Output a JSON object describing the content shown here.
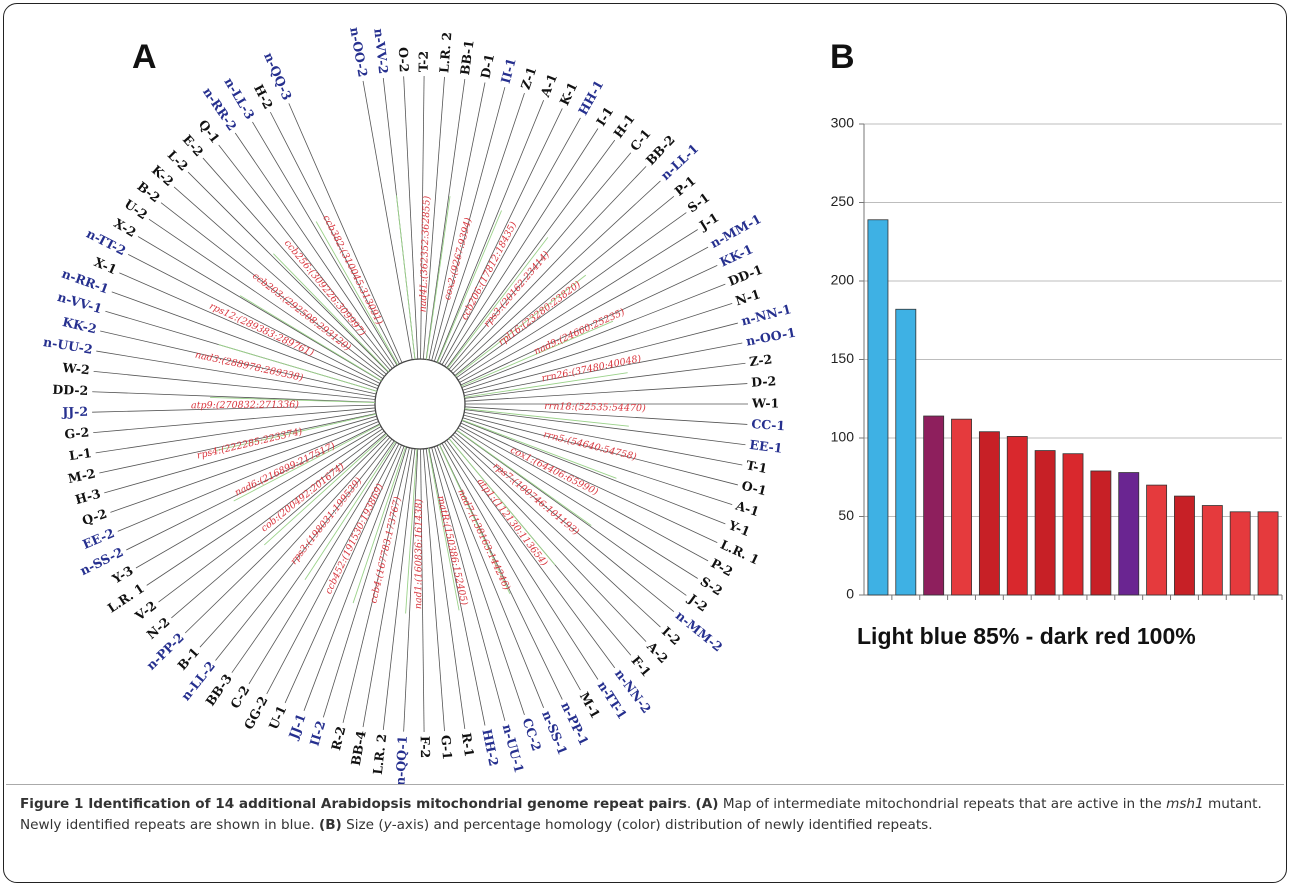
{
  "panel_a": {
    "letter": "A",
    "labels": [
      {
        "t": "n-OO-2",
        "blue": true
      },
      {
        "t": "n-VV-2",
        "blue": true
      },
      {
        "t": "O-2",
        "blue": false
      },
      {
        "t": "T-2",
        "blue": false
      },
      {
        "t": "L.R. 2",
        "blue": false
      },
      {
        "t": "BB-1",
        "blue": false
      },
      {
        "t": "D-1",
        "blue": false
      },
      {
        "t": "II-1",
        "blue": true
      },
      {
        "t": "Z-1",
        "blue": false
      },
      {
        "t": "A-1",
        "blue": false
      },
      {
        "t": "K-1",
        "blue": false
      },
      {
        "t": "HH-1",
        "blue": true
      },
      {
        "t": "I-1",
        "blue": false
      },
      {
        "t": "H-1",
        "blue": false
      },
      {
        "t": "C-1",
        "blue": false
      },
      {
        "t": "BB-2",
        "blue": false
      },
      {
        "t": "n-LL-1",
        "blue": true
      },
      {
        "t": "P-1",
        "blue": false
      },
      {
        "t": "S-1",
        "blue": false
      },
      {
        "t": "J-1",
        "blue": false
      },
      {
        "t": "n-MM-1",
        "blue": true
      },
      {
        "t": "KK-1",
        "blue": true
      },
      {
        "t": "DD-1",
        "blue": false
      },
      {
        "t": "N-1",
        "blue": false
      },
      {
        "t": "n-NN-1",
        "blue": true
      },
      {
        "t": "n-OO-1",
        "blue": true
      },
      {
        "t": "Z-2",
        "blue": false
      },
      {
        "t": "D-2",
        "blue": false
      },
      {
        "t": "W-1",
        "blue": false
      },
      {
        "t": "CC-1",
        "blue": true
      },
      {
        "t": "EE-1",
        "blue": true
      },
      {
        "t": "T-1",
        "blue": false
      },
      {
        "t": "O-1",
        "blue": false
      },
      {
        "t": "A-1",
        "blue": false
      },
      {
        "t": "Y-1",
        "blue": false
      },
      {
        "t": "L.R. 1",
        "blue": false
      },
      {
        "t": "P-2",
        "blue": false
      },
      {
        "t": "S-2",
        "blue": false
      },
      {
        "t": "J-2",
        "blue": false
      },
      {
        "t": "n-MM-2",
        "blue": true
      },
      {
        "t": "I-2",
        "blue": false
      },
      {
        "t": "A-2",
        "blue": false
      },
      {
        "t": "F-1",
        "blue": false
      },
      {
        "t": "n-NN-2",
        "blue": true
      },
      {
        "t": "n-TT-1",
        "blue": true
      },
      {
        "t": "M-1",
        "blue": false
      },
      {
        "t": "n-PP-1",
        "blue": true
      },
      {
        "t": "n-SS-1",
        "blue": true
      },
      {
        "t": "CC-2",
        "blue": true
      },
      {
        "t": "n-UU-1",
        "blue": true
      },
      {
        "t": "HH-2",
        "blue": true
      },
      {
        "t": "R-1",
        "blue": false
      },
      {
        "t": "G-1",
        "blue": false
      },
      {
        "t": "F-2",
        "blue": false
      },
      {
        "t": "n-QQ-1",
        "blue": true
      },
      {
        "t": "L.R. 2",
        "blue": false
      },
      {
        "t": "BB-4",
        "blue": false
      },
      {
        "t": "R-2",
        "blue": false
      },
      {
        "t": "II-2",
        "blue": true
      },
      {
        "t": "JJ-1",
        "blue": true
      },
      {
        "t": "U-1",
        "blue": false
      },
      {
        "t": "GG-2",
        "blue": false
      },
      {
        "t": "C-2",
        "blue": false
      },
      {
        "t": "BB-3",
        "blue": false
      },
      {
        "t": "n-LL-2",
        "blue": true
      },
      {
        "t": "B-1",
        "blue": false
      },
      {
        "t": "n-PP-2",
        "blue": true
      },
      {
        "t": "N-2",
        "blue": false
      },
      {
        "t": "V-2",
        "blue": false
      },
      {
        "t": "L.R. 1",
        "blue": false
      },
      {
        "t": "Y-3",
        "blue": false
      },
      {
        "t": "n-SS-2",
        "blue": true
      },
      {
        "t": "EE-2",
        "blue": true
      },
      {
        "t": "Q-2",
        "blue": false
      },
      {
        "t": "H-3",
        "blue": false
      },
      {
        "t": "M-2",
        "blue": false
      },
      {
        "t": "L-1",
        "blue": false
      },
      {
        "t": "G-2",
        "blue": false
      },
      {
        "t": "JJ-2",
        "blue": true
      },
      {
        "t": "DD-2",
        "blue": false
      },
      {
        "t": "W-2",
        "blue": false
      },
      {
        "t": "n-UU-2",
        "blue": true
      },
      {
        "t": "KK-2",
        "blue": true
      },
      {
        "t": "n-VV-1",
        "blue": true
      },
      {
        "t": "n-RR-1",
        "blue": true
      },
      {
        "t": "X-1",
        "blue": false
      },
      {
        "t": "n-TT-2",
        "blue": true
      },
      {
        "t": "X-2",
        "blue": false
      },
      {
        "t": "U-2",
        "blue": false
      },
      {
        "t": "B-2",
        "blue": false
      },
      {
        "t": "K-2",
        "blue": false
      },
      {
        "t": "L-2",
        "blue": false
      },
      {
        "t": "E-2",
        "blue": false
      },
      {
        "t": "Q-1",
        "blue": false
      },
      {
        "t": "n-RR-2",
        "blue": true
      },
      {
        "t": "n-LL-3",
        "blue": true
      },
      {
        "t": "H-2",
        "blue": false
      },
      {
        "t": "n-QQ-3",
        "blue": true
      }
    ],
    "genes": [
      "nad4L:(362352:362855)",
      "cox2:(9267:9394)",
      "ccb206:(17812:18435)",
      "rps3:(20162:23414)",
      "rpl16:(23280:23820)",
      "nad9:(24660:25235)",
      "rrn26:(37480:40048)",
      "rrn18:(52535:54470)",
      "rrn5:(54640:54758)",
      "cox1:(64406:65990)",
      "rps7:(100746:101193)",
      "atp1:(112130:113654)",
      "nad7:(138163:144246)",
      "matR:(150386:152405)",
      "nad1:(160836:161438)",
      "ccb4:(167783:173767)",
      "ccb452:(191530:193869)",
      "rps3:(198031:199539)",
      "cob:(200492:201674)",
      "nad6:(216899:217517)",
      "rps4:(222285:223374)",
      "atp9:(270832:271336)",
      "nad3:(288978:289338)",
      "rps12:(289383:289761)",
      "ccb203:(292508:293120)",
      "ccb256:(309226:309997)",
      "ccb382:(310045:313091)"
    ]
  },
  "panel_b": {
    "letter": "B",
    "legend_text": "Light blue 85% - dark red 100%",
    "colors": {
      "light_blue": "#3eb1e4",
      "purple": "#8e1f5d",
      "violet": "#6a2591",
      "red": "#e53a3d",
      "dark_red": "#c72026"
    }
  },
  "chart_data": {
    "type": "bar",
    "title": "",
    "xlabel": "",
    "ylabel": "",
    "ylim": [
      0,
      300
    ],
    "yticks": [
      "0",
      "50",
      "100",
      "150",
      "200",
      "250",
      "300"
    ],
    "grid": true,
    "values": [
      239,
      182,
      114,
      112,
      104,
      101,
      92,
      90,
      79,
      78,
      70,
      63,
      57,
      53,
      53
    ],
    "colors": [
      "#3eb1e4",
      "#3eb1e4",
      "#8e1f5d",
      "#e53a3d",
      "#c72026",
      "#d9282d",
      "#c72026",
      "#d9282d",
      "#c72026",
      "#6a2591",
      "#e53a3d",
      "#c72026",
      "#e53a3d",
      "#e53a3d",
      "#e53a3d"
    ]
  },
  "caption": {
    "title": "Figure 1 Identification of 14 additional Arabidopsis mitochondrial genome repeat pairs",
    "part1": ". ",
    "label_a": "(A)",
    "text_a1": " Map of intermediate mitochondrial repeats that are active in the ",
    "text_a_italic": "msh1",
    "text_a2": " mutant. Newly identified repeats are shown in blue. ",
    "label_b": "(B)",
    "text_b1": " Size (",
    "text_b_italic": "y",
    "text_b2": "-axis) and percentage homology (color) distribution of newly identified repeats."
  }
}
